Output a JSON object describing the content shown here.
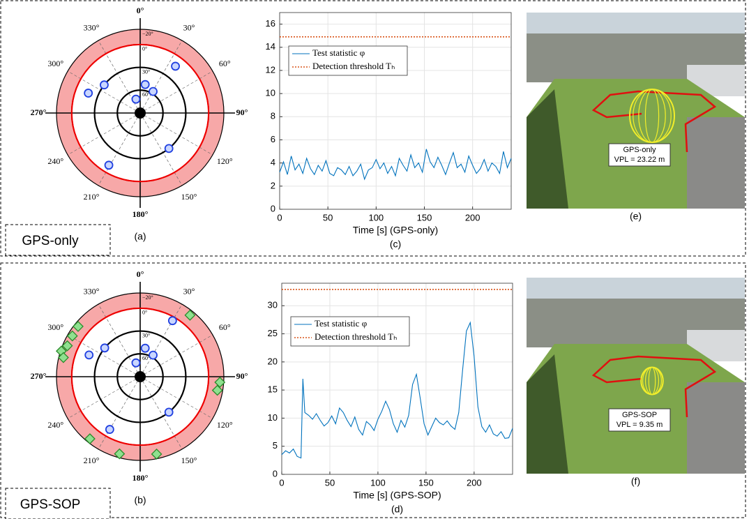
{
  "rows": [
    "GPS-only",
    "GPS-SOP"
  ],
  "images": [
    {
      "label": [
        "GPS-only",
        "VPL = 23.22 m"
      ],
      "caption": "(e)"
    },
    {
      "label": [
        "GPS-SOP",
        "VPL = 9.35 m"
      ],
      "caption": "(f)"
    }
  ],
  "chart_data": [
    {
      "type": "polar_scatter",
      "caption": "(a)",
      "rlim": [
        90,
        -20
      ],
      "rticks": [
        {
          "value": -20,
          "label": "−20°"
        },
        {
          "value": 0,
          "label": "0°"
        },
        {
          "value": 30,
          "label": "30°"
        },
        {
          "value": 60,
          "label": "60°"
        }
      ],
      "mask_elevation": 0,
      "azticks": [
        {
          "value": 0,
          "label": "0°"
        },
        {
          "value": 30,
          "label": "30°"
        },
        {
          "value": 60,
          "label": "60°"
        },
        {
          "value": 90,
          "label": "90°"
        },
        {
          "value": 120,
          "label": "120°"
        },
        {
          "value": 150,
          "label": "150°"
        },
        {
          "value": 180,
          "label": "180°"
        },
        {
          "value": 210,
          "label": "210°"
        },
        {
          "value": 240,
          "label": "240°"
        },
        {
          "value": 270,
          "label": "270°"
        },
        {
          "value": 300,
          "label": "300°"
        },
        {
          "value": 330,
          "label": "330°"
        }
      ],
      "series": [
        {
          "marker": "circle",
          "color": "#1f3fe0",
          "fill": "#c9d6ff",
          "azimuth": [
            37,
            308,
            291,
            10,
            31,
            343,
            141,
            211
          ],
          "elevation": [
            13,
            30,
            17,
            52,
            57,
            71,
            30,
            10
          ]
        }
      ]
    },
    {
      "type": "line",
      "caption": "(c)",
      "xlabel": "Time [s] (GPS-only)",
      "xlim": [
        0,
        240
      ],
      "ylim": [
        0,
        17
      ],
      "xticks": [
        0,
        50,
        100,
        150,
        200
      ],
      "yticks": [
        0,
        2,
        4,
        6,
        8,
        10,
        12,
        14,
        16
      ],
      "grid": true,
      "legend": "upper left",
      "series": [
        {
          "name": "Test statistic φ",
          "color": "#0072bd",
          "style": "solid",
          "x": [
            0,
            4,
            8,
            12,
            16,
            20,
            24,
            28,
            32,
            36,
            40,
            44,
            48,
            52,
            56,
            60,
            64,
            68,
            72,
            76,
            80,
            84,
            88,
            92,
            96,
            100,
            104,
            108,
            112,
            116,
            120,
            124,
            128,
            132,
            136,
            140,
            144,
            148,
            152,
            156,
            160,
            164,
            168,
            172,
            176,
            180,
            184,
            188,
            192,
            196,
            200,
            204,
            208,
            212,
            216,
            220,
            224,
            228,
            232,
            236,
            240
          ],
          "values": [
            3.2,
            4.1,
            3.0,
            4.6,
            3.4,
            3.9,
            3.1,
            4.4,
            3.5,
            3.0,
            3.8,
            3.3,
            4.2,
            3.1,
            2.9,
            3.6,
            3.4,
            3.0,
            3.7,
            2.9,
            3.3,
            3.9,
            2.6,
            3.4,
            3.6,
            4.3,
            3.5,
            4.0,
            3.1,
            3.7,
            2.9,
            4.4,
            3.8,
            3.3,
            4.7,
            3.6,
            4.0,
            3.2,
            5.2,
            4.1,
            3.6,
            4.5,
            3.8,
            3.0,
            4.0,
            4.9,
            3.6,
            3.9,
            3.2,
            4.6,
            3.8,
            3.1,
            3.5,
            4.3,
            3.3,
            4.0,
            3.7,
            3.1,
            5.0,
            3.6,
            4.4
          ]
        },
        {
          "name": "Detection threshold Tₕ",
          "color": "#d95319",
          "style": "dotted",
          "x": [
            0,
            240
          ],
          "values": [
            14.9,
            14.9
          ]
        }
      ]
    },
    {
      "type": "polar_scatter",
      "caption": "(b)",
      "rlim": [
        90,
        -20
      ],
      "rticks": [
        {
          "value": -20,
          "label": "−20°"
        },
        {
          "value": 0,
          "label": "0°"
        },
        {
          "value": 30,
          "label": "30°"
        },
        {
          "value": 60,
          "label": "60°"
        }
      ],
      "mask_elevation": 0,
      "azticks": [
        {
          "value": 0,
          "label": "0°"
        },
        {
          "value": 30,
          "label": "30°"
        },
        {
          "value": 60,
          "label": "60°"
        },
        {
          "value": 90,
          "label": "90°"
        },
        {
          "value": 120,
          "label": "120°"
        },
        {
          "value": 150,
          "label": "150°"
        },
        {
          "value": 180,
          "label": "180°"
        },
        {
          "value": 210,
          "label": "210°"
        },
        {
          "value": 240,
          "label": "240°"
        },
        {
          "value": 270,
          "label": "270°"
        },
        {
          "value": 300,
          "label": "300°"
        },
        {
          "value": 330,
          "label": "330°"
        }
      ],
      "series": [
        {
          "marker": "circle",
          "color": "#1f3fe0",
          "fill": "#c9d6ff",
          "azimuth": [
            30,
            309,
            293,
            10,
            31,
            343,
            141,
            210
          ],
          "elevation": [
            5,
            30,
            17,
            52,
            57,
            71,
            30,
            10
          ]
        },
        {
          "marker": "diamond",
          "color": "#2a8a2a",
          "fill": "#8fe08f",
          "azimuth": [
            39,
            309,
            301,
            293,
            288,
            284,
            94,
            100,
            168,
            195,
            219
          ],
          "elevation": [
            -14,
            -15,
            -14,
            -14,
            -19,
            -14,
            -15,
            -13,
            -14,
            -15,
            -15
          ]
        }
      ]
    },
    {
      "type": "line",
      "caption": "(d)",
      "xlabel": "Time [s] (GPS-SOP)",
      "xlim": [
        0,
        240
      ],
      "ylim": [
        0,
        34
      ],
      "xticks": [
        0,
        50,
        100,
        150,
        200
      ],
      "yticks": [
        0,
        5,
        10,
        15,
        20,
        25,
        30
      ],
      "grid": true,
      "legend": "upper left",
      "series": [
        {
          "name": "Test statistic φ",
          "color": "#0072bd",
          "style": "solid",
          "x": [
            0,
            4,
            8,
            12,
            16,
            20,
            22,
            24,
            28,
            32,
            36,
            40,
            44,
            48,
            52,
            56,
            60,
            64,
            68,
            72,
            76,
            80,
            84,
            88,
            92,
            96,
            100,
            104,
            108,
            112,
            116,
            120,
            124,
            128,
            132,
            136,
            140,
            144,
            148,
            152,
            156,
            160,
            164,
            168,
            172,
            176,
            180,
            184,
            188,
            192,
            196,
            200,
            204,
            208,
            212,
            216,
            220,
            224,
            228,
            232,
            236,
            240
          ],
          "values": [
            3.5,
            4.2,
            3.8,
            4.5,
            3.2,
            2.9,
            17.0,
            11.0,
            10.5,
            9.8,
            10.8,
            9.6,
            8.6,
            9.2,
            10.4,
            9.0,
            11.8,
            11.0,
            9.6,
            8.5,
            10.2,
            8.0,
            7.0,
            9.4,
            8.8,
            7.8,
            9.8,
            11.2,
            13.0,
            11.5,
            9.0,
            7.5,
            9.6,
            8.4,
            10.5,
            16.0,
            17.8,
            13.5,
            9.0,
            7.0,
            8.5,
            10.0,
            9.2,
            8.8,
            9.5,
            8.6,
            8.0,
            11.0,
            18.5,
            25.5,
            27.0,
            21.0,
            12.0,
            8.5,
            7.5,
            8.8,
            7.2,
            6.8,
            7.6,
            6.4,
            6.5,
            8.2
          ]
        },
        {
          "name": "Detection threshold Tₕ",
          "color": "#d95319",
          "style": "dotted",
          "x": [
            0,
            240
          ],
          "values": [
            32.9,
            32.9
          ]
        }
      ]
    }
  ]
}
